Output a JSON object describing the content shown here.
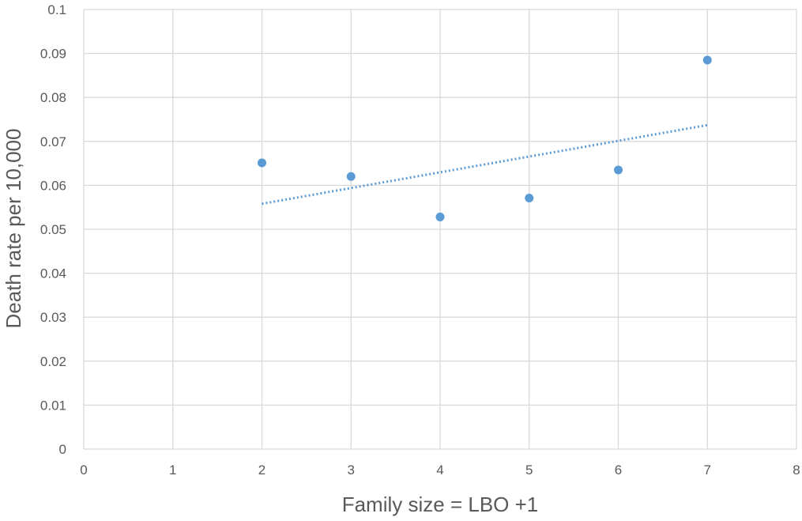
{
  "chart_data": {
    "type": "scatter",
    "title": "",
    "xlabel": "Family size = LBO +1",
    "ylabel": "Death rate per 10,000",
    "xlim": [
      0,
      8
    ],
    "ylim": [
      0,
      0.1
    ],
    "x_ticks": [
      "0",
      "1",
      "2",
      "3",
      "4",
      "5",
      "6",
      "7",
      "8"
    ],
    "y_ticks": [
      "0",
      "0.01",
      "0.02",
      "0.03",
      "0.04",
      "0.05",
      "0.06",
      "0.07",
      "0.08",
      "0.09",
      "0.1"
    ],
    "grid": true,
    "legend": "none",
    "series": [
      {
        "x": [
          2,
          3,
          4,
          5,
          6,
          7
        ],
        "y": [
          0.0651,
          0.062,
          0.0528,
          0.0571,
          0.0635,
          0.0885
        ]
      }
    ],
    "trendline": {
      "type": "linear",
      "style": "dotted",
      "x": [
        2,
        7
      ],
      "y": [
        0.0558,
        0.0737
      ]
    },
    "colors": {
      "marker": "#5b9bd5",
      "trendline": "#5b9bd5",
      "grid": "#d9d9d9",
      "text": "#595959"
    }
  }
}
